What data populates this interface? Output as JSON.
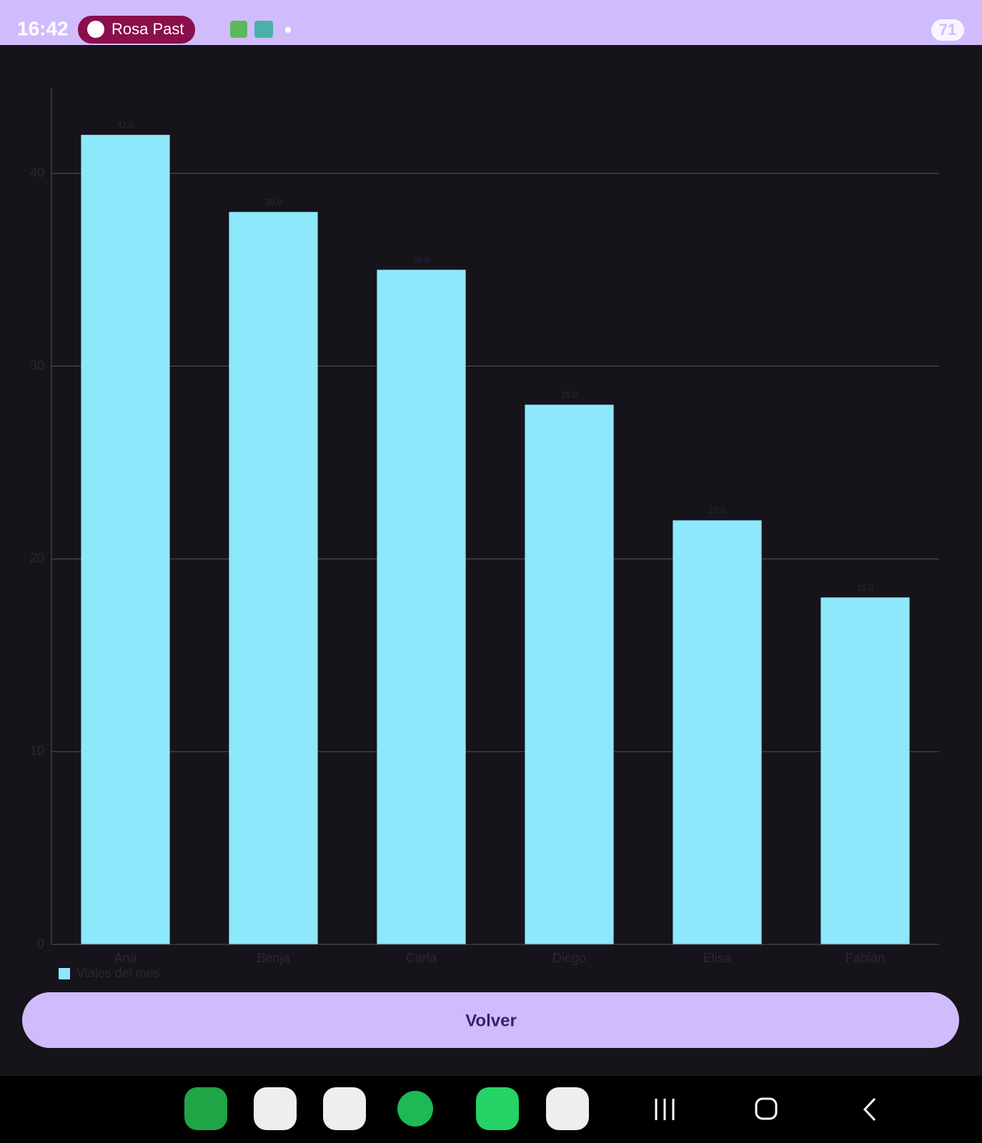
{
  "status_bar": {
    "time": "16:42",
    "media": "Rosa Past",
    "battery": "71"
  },
  "chart_data": {
    "type": "bar",
    "categories": [
      "Ana",
      "Benja",
      "Carla",
      "Diego",
      "Elisa",
      "Fabián"
    ],
    "series": [
      {
        "name": "Viajes del mes",
        "color": "#8de8fc",
        "values": [
          42,
          38,
          35,
          28,
          22,
          18
        ],
        "value_labels": [
          "42.0",
          "38.0",
          "35.0",
          "28.0",
          "22.0",
          "18.0"
        ]
      }
    ],
    "ylim": [
      0,
      44.4
    ],
    "yticks": [
      0,
      10,
      20,
      30,
      40
    ],
    "grid": true,
    "legend": "bottom-left"
  },
  "button": {
    "label": "Volver"
  }
}
